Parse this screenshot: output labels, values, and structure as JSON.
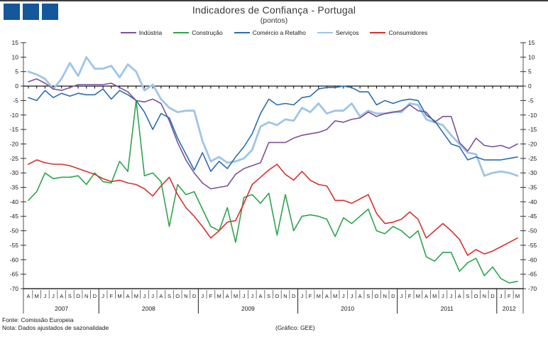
{
  "header": {
    "title": "Indicadores de Confiança - Portugal",
    "subtitle": "(pontos)"
  },
  "logo": {
    "square_color": "#15579B",
    "square_count": 3
  },
  "footer": {
    "fonte": "Fonte: Comissão Europeia",
    "nota": "Nota:  Dados  ajustados  de sazonalidade",
    "grafico": "(Gráfico:  GEE)"
  },
  "chart_data": {
    "type": "line",
    "title": "Indicadores de Confiança - Portugal",
    "subtitle": "(pontos)",
    "ylim": [
      -70,
      15
    ],
    "ytick_step": 5,
    "grid": false,
    "legend_position": "top",
    "axis_color": "#6e6e6e",
    "zero_line_color": "#000000",
    "x_months": [
      "A",
      "M",
      "J",
      "J",
      "A",
      "S",
      "O",
      "N",
      "D",
      "J",
      "F",
      "M",
      "A",
      "M",
      "J",
      "J",
      "A",
      "S",
      "O",
      "N",
      "D",
      "J",
      "F",
      "M",
      "A",
      "M",
      "J",
      "J",
      "A",
      "S",
      "O",
      "N",
      "D",
      "J",
      "F",
      "M",
      "A",
      "M",
      "J",
      "J",
      "A",
      "S",
      "O",
      "N",
      "D",
      "J",
      "F",
      "M",
      "A",
      "M",
      "J",
      "J",
      "A",
      "S",
      "O",
      "N",
      "D",
      "J",
      "F",
      "M"
    ],
    "years": [
      {
        "label": "2007",
        "span": 9
      },
      {
        "label": "2008",
        "span": 12
      },
      {
        "label": "2009",
        "span": 12
      },
      {
        "label": "2010",
        "span": 12
      },
      {
        "label": "2011",
        "span": 12
      },
      {
        "label": "2012",
        "span": 3
      }
    ],
    "series": [
      {
        "name": "Indústria",
        "color": "#7B519C",
        "width": 1.6,
        "values": [
          1.5,
          2.5,
          1,
          -1,
          -1.5,
          -0.5,
          0.5,
          0.5,
          0.5,
          0.5,
          1,
          -0.5,
          -2,
          -5,
          -5.5,
          -4.5,
          -6,
          -12,
          -19.5,
          -25.5,
          -30,
          -33.5,
          -35.5,
          -35,
          -34.5,
          -30.5,
          -28.5,
          -27.5,
          -26.5,
          -19.5,
          -19.5,
          -19.5,
          -18,
          -17,
          -16.5,
          -16,
          -15,
          -12,
          -12.5,
          -11.5,
          -11,
          -9,
          -10.5,
          -9.5,
          -9,
          -8.5,
          -6.5,
          -8.5,
          -9,
          -12.5,
          -10.5,
          -10.5,
          -19.5,
          -22.5,
          -18,
          -20.5,
          -21,
          -20.5,
          -21.5,
          -20
        ]
      },
      {
        "name": "Construção",
        "color": "#2EA44E",
        "width": 1.6,
        "values": [
          -39.5,
          -36.5,
          -30,
          -32,
          -31.5,
          -31.5,
          -31,
          -34,
          -30,
          -33,
          -33.5,
          -26,
          -29.5,
          -5,
          -31,
          -30,
          -33,
          -48.5,
          -34,
          -37.5,
          -36.5,
          -42.5,
          -48.5,
          -50,
          -42,
          -54,
          -38.5,
          -37.5,
          -40.5,
          -37,
          -51.5,
          -37.5,
          -50,
          -45,
          -44.5,
          -45,
          -46,
          -52,
          -45.5,
          -47.5,
          -45,
          -42.5,
          -50,
          -51,
          -48.5,
          -50,
          -52.5,
          -50,
          -59,
          -60.5,
          -57.5,
          -57.5,
          -64,
          -61,
          -59.5,
          -65.5,
          -62.5,
          -66.5,
          -68,
          -67.5
        ]
      },
      {
        "name": "Comércio a Retalho",
        "color": "#2A6EAF",
        "width": 1.6,
        "values": [
          -4,
          -5,
          -1.5,
          -4,
          -2.5,
          -3.5,
          -2.5,
          -3,
          -3,
          -1,
          -4.5,
          -1.5,
          -3,
          -5,
          -9,
          -15,
          -9.5,
          -11,
          -18,
          -23.5,
          -29,
          -23,
          -29.5,
          -26,
          -28.5,
          -24.5,
          -21,
          -16.5,
          -9.5,
          -4.5,
          -6.5,
          -6,
          -6.5,
          -4,
          -3.5,
          -1,
          -0.5,
          -0.5,
          0,
          -0.5,
          -2,
          -2,
          -6.5,
          -5,
          -6,
          -5,
          -4.5,
          -5,
          -10,
          -12,
          -16,
          -20,
          -21,
          -25.5,
          -24.5,
          -25.5,
          -25.5,
          -25.5,
          -25,
          -24.5
        ]
      },
      {
        "name": "Serviços",
        "color": "#9EC5E8",
        "width": 2.8,
        "values": [
          5,
          4,
          2.5,
          -1,
          2.5,
          8,
          3.5,
          10,
          6,
          6,
          7,
          3,
          7.5,
          5,
          -1.5,
          0.5,
          -4.5,
          -7.5,
          -9,
          -8.5,
          -8.5,
          -19,
          -26,
          -24.5,
          -26.5,
          -26,
          -25,
          -22,
          -14,
          -12.5,
          -13.5,
          -11.5,
          -12,
          -7.5,
          -9,
          -6,
          -9.5,
          -8.5,
          -8.5,
          -6,
          -10.5,
          -8.5,
          -9.5,
          -9.5,
          -9,
          -9,
          -6,
          -6.5,
          -11.5,
          -12.5,
          -13.5,
          -17,
          -20,
          -23,
          -23.5,
          -31,
          -30,
          -29.5,
          -30,
          -31
        ]
      },
      {
        "name": "Consumidores",
        "color": "#D7312E",
        "width": 1.6,
        "values": [
          -27,
          -25.5,
          -26.5,
          -27,
          -27,
          -27.5,
          -28.5,
          -29.5,
          -30.5,
          -32,
          -33,
          -32.5,
          -33.5,
          -34,
          -35.5,
          -38,
          -34.5,
          -31.5,
          -37.5,
          -42,
          -45,
          -48.5,
          -52.5,
          -50,
          -47,
          -46.5,
          -40.5,
          -34,
          -31.5,
          -29,
          -27,
          -30.5,
          -32.5,
          -29.5,
          -32.5,
          -34,
          -34.5,
          -39.5,
          -39.5,
          -40.5,
          -39,
          -37.5,
          -44,
          -47.5,
          -47,
          -46,
          -43.5,
          -46,
          -52.5,
          -50,
          -47.5,
          -50,
          -53,
          -58.5,
          -56.5,
          -58,
          -57,
          -55.5,
          -54,
          -52.5
        ]
      }
    ]
  }
}
